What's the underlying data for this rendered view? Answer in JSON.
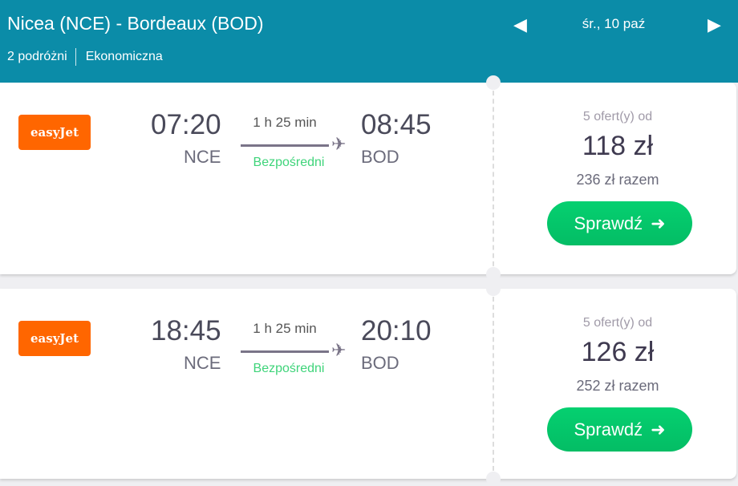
{
  "header": {
    "title": "Nicea (NCE) - Bordeaux (BOD)",
    "travellers": "2 podróżni",
    "cabin": "Ekonomiczna",
    "date": "śr., 10 paź",
    "prev_icon": "caret-left",
    "next_icon": "caret-right"
  },
  "colors": {
    "header": "#0b8ca8",
    "airline": "#ff6600",
    "button": "#05c96c",
    "direct": "#3fd47a"
  },
  "flights": [
    {
      "airline": "easyJet",
      "dep_time": "07:20",
      "dep_code": "NCE",
      "duration": "1 h 25 min",
      "stops": "Bezpośredni",
      "arr_time": "08:45",
      "arr_code": "BOD",
      "offers": "5 ofert(y) od",
      "price": "118 zł",
      "total": "236 zł razem",
      "button": "Sprawdź"
    },
    {
      "airline": "easyJet",
      "dep_time": "18:45",
      "dep_code": "NCE",
      "duration": "1 h 25 min",
      "stops": "Bezpośredni",
      "arr_time": "20:10",
      "arr_code": "BOD",
      "offers": "5 ofert(y) od",
      "price": "126 zł",
      "total": "252 zł razem",
      "button": "Sprawdź"
    }
  ]
}
